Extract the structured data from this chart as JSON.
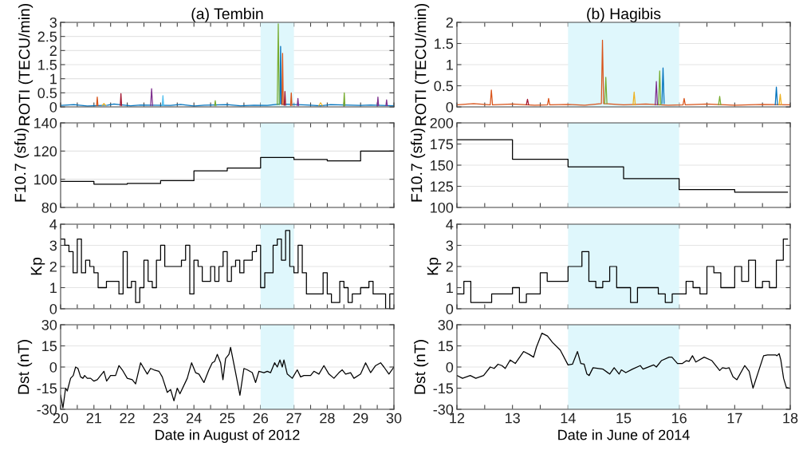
{
  "chart_data": [
    {
      "type": "line",
      "title": "(a) Tembin",
      "ylabel": "ROTI (TECU/min)",
      "xlim": [
        20,
        30
      ],
      "ylim": [
        0,
        3
      ],
      "yticks": [
        0,
        0.5,
        1,
        1.5,
        2,
        2.5,
        3
      ],
      "grid": "y",
      "tick_labels": "y",
      "xticks": [
        20,
        {
          "value": 20.5,
          "label": null
        },
        21,
        {
          "value": 21.5,
          "label": null
        },
        22,
        {
          "value": 22.5,
          "label": null
        },
        23,
        {
          "value": 23.5,
          "label": null
        },
        24,
        {
          "value": 24.5,
          "label": null
        },
        25,
        {
          "value": 25.5,
          "label": null
        },
        26,
        {
          "value": 26.5,
          "label": null
        },
        27,
        {
          "value": 27.5,
          "label": null
        },
        28,
        {
          "value": 28.5,
          "label": null
        },
        29,
        {
          "value": 29.5,
          "label": null
        },
        30
      ],
      "bands": [
        {
          "axis": "x",
          "from": 26,
          "to": 27,
          "color": "#dff7fc"
        }
      ],
      "series": [
        {
          "color": "#0072bd",
          "x": [
            20,
            20.4,
            20.8,
            21.4,
            21.6,
            22.1,
            22.4,
            23.3,
            23.6,
            24.0,
            24.3,
            25.0,
            25.4,
            25.8,
            26.2,
            26.58,
            26.6,
            26.62,
            27.4,
            27.8,
            28.1,
            29.0,
            29.3,
            30
          ],
          "values": [
            0.05,
            0.08,
            0.03,
            0.06,
            0.1,
            0.04,
            0.07,
            0.05,
            0.09,
            0.03,
            0.06,
            0.08,
            0.04,
            0.06,
            0.05,
            0.1,
            2.15,
            0.1,
            0.07,
            0.04,
            0.08,
            0.05,
            0.07,
            0.04
          ]
        },
        {
          "color": "#d95319",
          "x": [
            21.08,
            21.1,
            21.12,
            21.5,
            26.64,
            26.66,
            26.68,
            26.8,
            26.9,
            26.92,
            26.94
          ],
          "values": [
            0.05,
            0.35,
            0.05,
            null,
            0.08,
            1.9,
            0.08,
            null,
            0.05,
            0.5,
            0.05
          ]
        },
        {
          "color": "#77ac30",
          "x": [
            24.62,
            24.64,
            24.66,
            25,
            26.5,
            26.53,
            26.56,
            27,
            28.49,
            28.51,
            28.53
          ],
          "values": [
            0.05,
            0.22,
            0.05,
            null,
            0.08,
            2.95,
            0.08,
            null,
            0.05,
            0.5,
            0.05
          ]
        },
        {
          "color": "#7e2f8e",
          "x": [
            22.7,
            22.73,
            22.76,
            23,
            27.1,
            27.12,
            27.14,
            28,
            29.5,
            29.52,
            29.54,
            29.6,
            29.76,
            29.78,
            29.8
          ],
          "values": [
            0.05,
            0.65,
            0.05,
            null,
            0.05,
            0.3,
            0.05,
            null,
            0.05,
            0.35,
            0.05,
            null,
            0.05,
            0.25,
            0.05
          ]
        },
        {
          "color": "#a2142f",
          "x": [
            21.79,
            21.81,
            21.83,
            22,
            26.71,
            26.73,
            26.75
          ],
          "values": [
            0.05,
            0.47,
            0.05,
            null,
            0.06,
            0.55,
            0.06
          ]
        },
        {
          "color": "#4dbeee",
          "x": [
            23.05,
            23.07,
            23.09
          ],
          "values": [
            0.05,
            0.4,
            0.05
          ]
        },
        {
          "color": "#edb120",
          "x": [
            21.25,
            21.3,
            21.35,
            22,
            27.75,
            27.8,
            27.85
          ],
          "values": [
            0.05,
            0.12,
            0.05,
            null,
            0.05,
            0.15,
            0.05
          ]
        }
      ]
    },
    {
      "type": "line",
      "title": "(b) Hagibis",
      "ylabel": "ROTI (TECU/min)",
      "xlim": [
        12,
        18
      ],
      "ylim": [
        0,
        2
      ],
      "yticks": [
        0,
        0.5,
        1,
        1.5,
        2
      ],
      "grid": "y",
      "tick_labels": "y",
      "xticks": [
        12,
        {
          "value": 12.5,
          "label": null
        },
        13,
        {
          "value": 13.5,
          "label": null
        },
        14,
        {
          "value": 14.5,
          "label": null
        },
        15,
        {
          "value": 15.5,
          "label": null
        },
        16,
        {
          "value": 16.5,
          "label": null
        },
        17,
        {
          "value": 17.5,
          "label": null
        },
        18
      ],
      "bands": [
        {
          "axis": "x",
          "from": 14,
          "to": 16,
          "color": "#dff7fc"
        }
      ],
      "series": [
        {
          "color": "#d95319",
          "x": [
            12,
            12.3,
            12.6,
            12.62,
            12.64,
            13.0,
            13.4,
            13.63,
            13.65,
            13.67,
            14.0,
            14.3,
            14.6,
            14.62,
            14.64,
            15.0,
            15.4,
            15.8,
            16.07,
            16.09,
            16.11,
            16.5,
            17.0,
            17.5,
            18
          ],
          "values": [
            0.05,
            0.08,
            0.05,
            0.4,
            0.05,
            0.07,
            0.04,
            0.05,
            0.2,
            0.05,
            0.06,
            0.04,
            0.08,
            1.58,
            0.08,
            0.05,
            0.07,
            0.04,
            0.05,
            0.2,
            0.05,
            0.07,
            0.04,
            0.06,
            0.05
          ]
        },
        {
          "color": "#0072bd",
          "x": [
            15.69,
            15.71,
            15.73,
            16,
            17.73,
            17.75,
            17.77
          ],
          "values": [
            0.08,
            0.92,
            0.08,
            null,
            0.05,
            0.47,
            0.05
          ]
        },
        {
          "color": "#77ac30",
          "x": [
            14.66,
            14.68,
            14.7,
            15,
            15.63,
            15.65,
            15.67,
            16,
            16.71,
            16.73,
            16.75
          ],
          "values": [
            0.08,
            0.7,
            0.08,
            null,
            0.05,
            0.85,
            0.05,
            null,
            0.05,
            0.25,
            0.05
          ]
        },
        {
          "color": "#edb120",
          "x": [
            15.17,
            15.19,
            15.21,
            16,
            17.8,
            17.82,
            17.84
          ],
          "values": [
            0.05,
            0.35,
            0.05,
            null,
            0.05,
            0.3,
            0.05
          ]
        },
        {
          "color": "#7e2f8e",
          "x": [
            15.57,
            15.59,
            15.61
          ],
          "values": [
            0.05,
            0.6,
            0.05
          ]
        },
        {
          "color": "#a2142f",
          "x": [
            13.25,
            13.27,
            13.29
          ],
          "values": [
            0.05,
            0.18,
            0.05
          ]
        }
      ]
    },
    {
      "type": "step",
      "ylabel": "F10.7 (sfu)",
      "xlim": [
        20,
        30
      ],
      "ylim": [
        80,
        140
      ],
      "yticks": [
        80,
        100,
        120,
        140
      ],
      "grid": "y",
      "tick_labels": "y",
      "xticks": [
        20,
        {
          "value": 20.5,
          "label": null
        },
        21,
        {
          "value": 21.5,
          "label": null
        },
        22,
        {
          "value": 22.5,
          "label": null
        },
        23,
        {
          "value": 23.5,
          "label": null
        },
        24,
        {
          "value": 24.5,
          "label": null
        },
        25,
        {
          "value": 25.5,
          "label": null
        },
        26,
        {
          "value": 26.5,
          "label": null
        },
        27,
        {
          "value": 27.5,
          "label": null
        },
        28,
        {
          "value": 28.5,
          "label": null
        },
        29,
        {
          "value": 29.5,
          "label": null
        },
        30
      ],
      "bands": [
        {
          "axis": "x",
          "from": 26,
          "to": 27,
          "color": "#dff7fc"
        }
      ],
      "series": [
        {
          "color": "#000000",
          "x": [
            20,
            21,
            22,
            23,
            24,
            25,
            26,
            27,
            28,
            29,
            30
          ],
          "values": [
            98.5,
            96.5,
            97,
            99,
            106,
            108,
            115.5,
            114,
            113,
            120,
            120
          ]
        }
      ]
    },
    {
      "type": "step",
      "ylabel": "F10.7 (sfu)",
      "xlim": [
        12,
        18
      ],
      "ylim": [
        100,
        200
      ],
      "yticks": [
        100,
        125,
        150,
        175,
        200
      ],
      "grid": "y",
      "tick_labels": "y",
      "xticks": [
        12,
        {
          "value": 12.5,
          "label": null
        },
        13,
        {
          "value": 13.5,
          "label": null
        },
        14,
        {
          "value": 14.5,
          "label": null
        },
        15,
        {
          "value": 15.5,
          "label": null
        },
        16,
        {
          "value": 16.5,
          "label": null
        },
        17,
        {
          "value": 17.5,
          "label": null
        },
        18
      ],
      "bands": [
        {
          "axis": "x",
          "from": 14,
          "to": 16,
          "color": "#dff7fc"
        }
      ],
      "series": [
        {
          "color": "#000000",
          "x": [
            12,
            13,
            14,
            15,
            16,
            17,
            17.95
          ],
          "values": [
            180,
            157,
            148,
            134,
            121,
            118,
            118
          ]
        }
      ]
    },
    {
      "type": "step",
      "ylabel": "Kp",
      "xlim": [
        20,
        30
      ],
      "ylim": [
        0,
        4
      ],
      "yticks": [
        0,
        1,
        2,
        3,
        4
      ],
      "grid": "y",
      "tick_labels": "y",
      "xticks": [
        20,
        {
          "value": 20.5,
          "label": null
        },
        21,
        {
          "value": 21.5,
          "label": null
        },
        22,
        {
          "value": 22.5,
          "label": null
        },
        23,
        {
          "value": 23.5,
          "label": null
        },
        24,
        {
          "value": 24.5,
          "label": null
        },
        25,
        {
          "value": 25.5,
          "label": null
        },
        26,
        {
          "value": 26.5,
          "label": null
        },
        27,
        {
          "value": 27.5,
          "label": null
        },
        28,
        {
          "value": 28.5,
          "label": null
        },
        29,
        {
          "value": 29.5,
          "label": null
        },
        30
      ],
      "bands": [
        {
          "axis": "x",
          "from": 26,
          "to": 27,
          "color": "#dff7fc"
        }
      ],
      "series": [
        {
          "color": "#000000",
          "x": [
            20,
            20.125,
            20.25,
            20.375,
            20.5,
            20.625,
            20.75,
            20.875,
            21,
            21.125,
            21.25,
            21.375,
            21.5,
            21.625,
            21.75,
            21.875,
            22,
            22.125,
            22.25,
            22.375,
            22.5,
            22.625,
            22.75,
            22.875,
            23,
            23.125,
            23.25,
            23.375,
            23.5,
            23.625,
            23.75,
            23.875,
            24,
            24.125,
            24.25,
            24.375,
            24.5,
            24.625,
            24.75,
            24.875,
            25,
            25.125,
            25.25,
            25.375,
            25.5,
            25.625,
            25.75,
            25.875,
            26,
            26.125,
            26.25,
            26.375,
            26.5,
            26.625,
            26.75,
            26.875,
            27,
            27.125,
            27.25,
            27.375,
            27.5,
            27.625,
            27.75,
            27.875,
            28,
            28.125,
            28.25,
            28.375,
            28.5,
            28.625,
            28.75,
            28.875,
            29,
            29.125,
            29.25,
            29.375,
            29.5,
            29.625,
            29.75,
            29.875,
            30
          ],
          "values": [
            3.3,
            3.0,
            2.7,
            1.7,
            3.3,
            1.7,
            2.3,
            2.0,
            1.7,
            1.0,
            1.0,
            1.3,
            1.3,
            1.3,
            0.7,
            2.7,
            1.0,
            1.3,
            0.3,
            1.0,
            2.3,
            1.3,
            1.0,
            2.3,
            3.0,
            2.0,
            2.0,
            2.0,
            2.0,
            2.3,
            3.0,
            0.7,
            2.3,
            2.0,
            1.3,
            1.3,
            2.0,
            1.3,
            2.0,
            2.7,
            1.3,
            2.0,
            2.3,
            1.7,
            2.3,
            2.3,
            2.7,
            3.0,
            1.0,
            1.7,
            1.7,
            3.0,
            3.3,
            2.3,
            3.7,
            2.0,
            1.7,
            3.0,
            1.7,
            0.7,
            0.7,
            0.7,
            0.7,
            1.7,
            0.7,
            0.3,
            0.3,
            1.3,
            1.0,
            0.3,
            0.7,
            0.7,
            1.0,
            1.0,
            1.3,
            0.7,
            0.7,
            0.7,
            0.0,
            0.7,
            0.7
          ]
        }
      ]
    },
    {
      "type": "step",
      "ylabel": "Kp",
      "xlim": [
        12,
        18
      ],
      "ylim": [
        0,
        4
      ],
      "yticks": [
        0,
        1,
        2,
        3,
        4
      ],
      "grid": "y",
      "tick_labels": "y",
      "xticks": [
        12,
        {
          "value": 12.5,
          "label": null
        },
        13,
        {
          "value": 13.5,
          "label": null
        },
        14,
        {
          "value": 14.5,
          "label": null
        },
        15,
        {
          "value": 15.5,
          "label": null
        },
        16,
        {
          "value": 16.5,
          "label": null
        },
        17,
        {
          "value": 17.5,
          "label": null
        },
        18
      ],
      "bands": [
        {
          "axis": "x",
          "from": 14,
          "to": 16,
          "color": "#dff7fc"
        }
      ],
      "series": [
        {
          "color": "#000000",
          "x": [
            12,
            12.125,
            12.25,
            12.375,
            12.5,
            12.625,
            12.75,
            12.875,
            13,
            13.125,
            13.25,
            13.375,
            13.5,
            13.625,
            13.75,
            13.875,
            14,
            14.125,
            14.25,
            14.375,
            14.5,
            14.625,
            14.75,
            14.875,
            15,
            15.125,
            15.25,
            15.375,
            15.5,
            15.625,
            15.75,
            15.875,
            16,
            16.125,
            16.25,
            16.375,
            16.5,
            16.625,
            16.75,
            16.875,
            17,
            17.125,
            17.25,
            17.375,
            17.5,
            17.625,
            17.75,
            17.875,
            17.95
          ],
          "values": [
            0.7,
            1.3,
            0.3,
            0.3,
            0.3,
            0.7,
            0.7,
            0.7,
            1.0,
            0.3,
            0.7,
            0.7,
            1.7,
            1.3,
            1.3,
            1.3,
            2.0,
            2.0,
            2.7,
            1.3,
            1.0,
            1.3,
            2.0,
            1.0,
            1.0,
            0.3,
            1.0,
            1.0,
            1.0,
            0.7,
            0.3,
            0.7,
            0.7,
            1.3,
            1.0,
            0.7,
            2.0,
            1.7,
            1.0,
            1.0,
            2.0,
            1.3,
            2.3,
            1.0,
            1.3,
            1.0,
            2.3,
            3.3,
            3.3
          ]
        }
      ]
    },
    {
      "type": "line",
      "ylabel": "Dst (nT)",
      "xlabel": "Date in August of 2012",
      "xlim": [
        20,
        30
      ],
      "ylim": [
        -30,
        30
      ],
      "yticks": [
        -30,
        -15,
        0,
        15,
        30
      ],
      "grid": "y",
      "xticks": [
        20,
        {
          "value": 20.5,
          "label": null
        },
        21,
        {
          "value": 21.5,
          "label": null
        },
        22,
        {
          "value": 22.5,
          "label": null
        },
        23,
        {
          "value": 23.5,
          "label": null
        },
        24,
        {
          "value": 24.5,
          "label": null
        },
        25,
        {
          "value": 25.5,
          "label": null
        },
        26,
        {
          "value": 26.5,
          "label": null
        },
        27,
        {
          "value": 27.5,
          "label": null
        },
        28,
        {
          "value": 28.5,
          "label": null
        },
        29,
        {
          "value": 29.5,
          "label": null
        },
        30
      ],
      "bands": [
        {
          "axis": "x",
          "from": 26,
          "to": 27,
          "color": "#dff7fc"
        }
      ],
      "series": [
        {
          "color": "#000000",
          "x": [
            20.0,
            20.07,
            20.15,
            20.2,
            20.3,
            20.38,
            20.45,
            20.52,
            20.6,
            20.67,
            20.72,
            20.8,
            20.9,
            21.0,
            21.1,
            21.3,
            21.38,
            21.5,
            21.65,
            21.75,
            21.85,
            22.0,
            22.15,
            22.25,
            22.4,
            22.6,
            22.7,
            22.8,
            22.95,
            23.05,
            23.2,
            23.3,
            23.4,
            23.5,
            23.58,
            23.8,
            23.93,
            24.05,
            24.15,
            24.3,
            24.45,
            24.55,
            24.62,
            24.7,
            24.8,
            24.87,
            24.95,
            25.05,
            25.1,
            25.25,
            25.38,
            25.5,
            25.6,
            25.75,
            25.85,
            25.95,
            26.1,
            26.2,
            26.3,
            26.42,
            26.5,
            26.58,
            26.65,
            26.7,
            26.8,
            26.95,
            27.1,
            27.2,
            27.3,
            27.5,
            27.6,
            27.75,
            27.9,
            28.05,
            28.2,
            28.35,
            28.45,
            28.55,
            28.7,
            28.8,
            29.0,
            29.15,
            29.3,
            29.45,
            29.6,
            29.7,
            29.85,
            30.0
          ],
          "values": [
            -20,
            -29,
            -15,
            -17,
            -8,
            -6,
            0,
            -1,
            -7,
            -8,
            -6,
            -8,
            -8,
            -10,
            -9,
            -3,
            -10,
            -6,
            -6,
            1,
            -2,
            -8,
            -9,
            -12,
            3,
            -5,
            -1,
            -2,
            -3,
            -7,
            -18,
            -16,
            -24,
            -15,
            -19,
            -8,
            3,
            -4,
            -5,
            -11,
            -2,
            3,
            4,
            9,
            3,
            -9,
            6,
            9,
            14,
            -4,
            -20,
            -1,
            -2,
            -4,
            -11,
            -3,
            -4,
            -3,
            -4,
            3,
            0,
            5,
            0,
            5,
            -5,
            -8,
            -2,
            -7,
            -6,
            -6,
            -3,
            -5,
            1,
            -5,
            -8,
            -4,
            -2,
            -5,
            -4,
            -8,
            -5,
            3,
            -4,
            1,
            3,
            0,
            -5,
            0
          ]
        }
      ]
    },
    {
      "type": "line",
      "ylabel": "Dst (nT)",
      "xlabel": "Date in June of 2014",
      "xlim": [
        12,
        18
      ],
      "ylim": [
        -30,
        30
      ],
      "yticks": [
        -30,
        -15,
        0,
        15,
        30
      ],
      "grid": "y",
      "xticks": [
        12,
        {
          "value": 12.5,
          "label": null
        },
        13,
        {
          "value": 13.5,
          "label": null
        },
        14,
        {
          "value": 14.5,
          "label": null
        },
        15,
        {
          "value": 15.5,
          "label": null
        },
        16,
        {
          "value": 16.5,
          "label": null
        },
        17,
        {
          "value": 17.5,
          "label": null
        },
        18
      ],
      "bands": [
        {
          "axis": "x",
          "from": 14,
          "to": 16,
          "color": "#dff7fc"
        }
      ],
      "series": [
        {
          "color": "#000000",
          "x": [
            12.0,
            12.1,
            12.24,
            12.34,
            12.48,
            12.6,
            12.67,
            12.74,
            12.81,
            12.87,
            12.96,
            13.05,
            13.2,
            13.3,
            13.38,
            13.43,
            13.53,
            13.63,
            13.72,
            13.86,
            14.0,
            14.08,
            14.17,
            14.23,
            14.29,
            14.34,
            14.38,
            14.45,
            14.63,
            14.75,
            14.83,
            14.92,
            14.96,
            15.04,
            15.16,
            15.3,
            15.35,
            15.54,
            15.59,
            15.68,
            15.82,
            15.87,
            15.97,
            16.06,
            16.13,
            16.18,
            16.24,
            16.3,
            16.45,
            16.59,
            16.73,
            16.78,
            16.85,
            16.9,
            16.97,
            17.04,
            17.18,
            17.26,
            17.33,
            17.52,
            17.59,
            17.74,
            17.76,
            17.8,
            17.83,
            17.88,
            17.93,
            17.98
          ],
          "values": [
            -6,
            -8,
            -6,
            -8,
            -6,
            0,
            -1,
            2,
            1,
            -1,
            5,
            2.5,
            11,
            9,
            7,
            14,
            24,
            22,
            17.5,
            12,
            1.5,
            2,
            11,
            2.5,
            2,
            -5,
            -6,
            -0.5,
            -1.5,
            -5,
            -0.5,
            -5,
            -2,
            -4,
            -1.5,
            1,
            -1.5,
            1.5,
            0,
            4.5,
            7,
            7,
            2.5,
            2.5,
            4.5,
            4,
            8,
            3.5,
            7,
            4.5,
            -2.5,
            -0.5,
            -1,
            -0.5,
            -7,
            -9,
            1,
            -3,
            -15,
            8,
            8.5,
            8.5,
            8,
            9.5,
            5,
            -8,
            -14.5,
            -15
          ]
        }
      ]
    }
  ]
}
